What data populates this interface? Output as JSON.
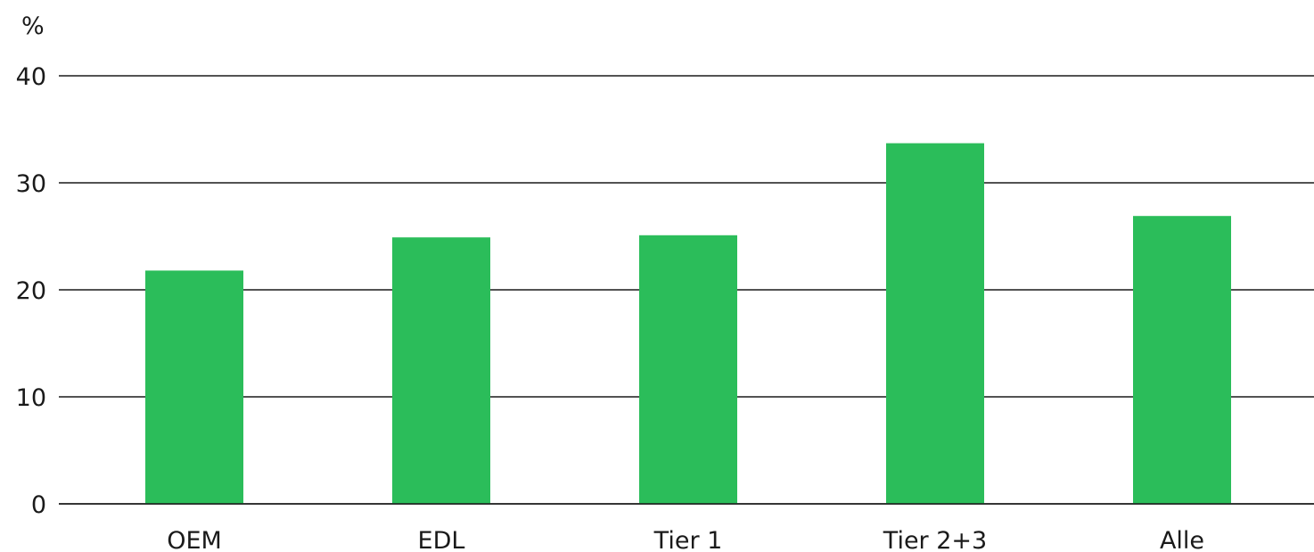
{
  "chart_data": {
    "type": "bar",
    "unit_label": "%",
    "categories": [
      "OEM",
      "EDL",
      "Tier 1",
      "Tier 2+3",
      "Alle"
    ],
    "values": [
      21.8,
      24.9,
      25.1,
      33.7,
      26.9
    ],
    "ylim": [
      0,
      40
    ],
    "yticks": [
      "0",
      "10",
      "20",
      "30",
      "40"
    ],
    "grid": true,
    "colors": {
      "bar": "#2bbd5a",
      "grid": "#1a1a1a",
      "text": "#1a1a1a"
    }
  }
}
